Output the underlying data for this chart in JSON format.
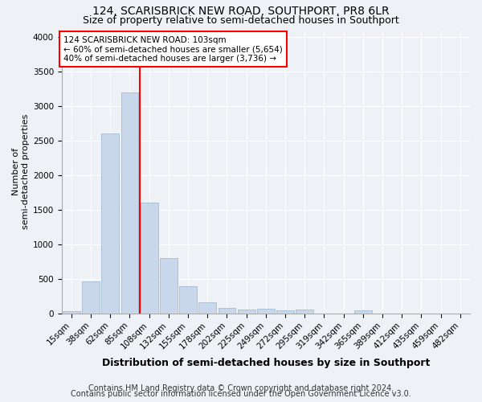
{
  "title": "124, SCARISBRICK NEW ROAD, SOUTHPORT, PR8 6LR",
  "subtitle": "Size of property relative to semi-detached houses in Southport",
  "xlabel": "Distribution of semi-detached houses by size in Southport",
  "ylabel": "Number of\nsemi-detached properties",
  "footnote1": "Contains HM Land Registry data © Crown copyright and database right 2024.",
  "footnote2": "Contains public sector information licensed under the Open Government Licence v3.0.",
  "bin_labels": [
    "15sqm",
    "38sqm",
    "62sqm",
    "85sqm",
    "108sqm",
    "132sqm",
    "155sqm",
    "178sqm",
    "202sqm",
    "225sqm",
    "249sqm",
    "272sqm",
    "295sqm",
    "319sqm",
    "342sqm",
    "365sqm",
    "389sqm",
    "412sqm",
    "435sqm",
    "459sqm",
    "482sqm"
  ],
  "bar_values": [
    30,
    460,
    2600,
    3200,
    1600,
    800,
    390,
    160,
    80,
    55,
    60,
    40,
    55,
    0,
    0,
    45,
    0,
    0,
    0,
    0,
    0
  ],
  "bar_color": "#c8d8ea",
  "bar_edgecolor": "#9ab4cc",
  "vline_x_index": 4,
  "vline_color": "red",
  "annotation_line1": "124 SCARISBRICK NEW ROAD: 103sqm",
  "annotation_line2": "← 60% of semi-detached houses are smaller (5,654)",
  "annotation_line3": "40% of semi-detached houses are larger (3,736) →",
  "annotation_box_color": "red",
  "annotation_box_facecolor": "white",
  "ylim": [
    0,
    4100
  ],
  "yticks": [
    0,
    500,
    1000,
    1500,
    2000,
    2500,
    3000,
    3500,
    4000
  ],
  "title_fontsize": 10,
  "subtitle_fontsize": 9,
  "xlabel_fontsize": 9,
  "ylabel_fontsize": 8,
  "tick_fontsize": 7.5,
  "annotation_fontsize": 7.5,
  "footnote_fontsize": 7,
  "bg_color": "#eef2f7"
}
